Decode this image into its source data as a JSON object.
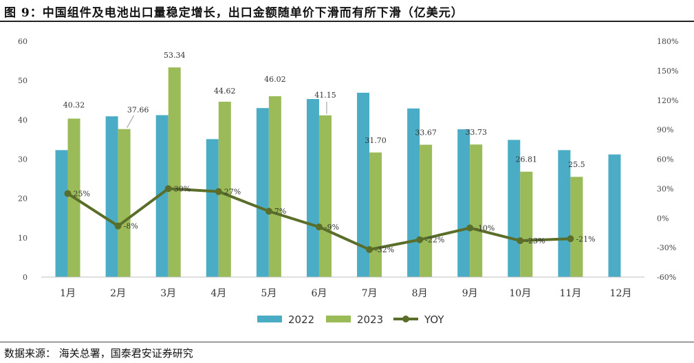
{
  "header": {
    "title": "图 9：中国组件及电池出口量稳定增长，出口金额随单价下滑而有所下滑（亿美元）"
  },
  "footer": {
    "source": "数据来源：  海关总署，国泰君安证券研究"
  },
  "colors": {
    "series_2022": "#4bacc6",
    "series_2023": "#9bbb59",
    "series_yoy": "#5a6e2a"
  },
  "chart_data": {
    "type": "bar",
    "title": "",
    "xlabel": "",
    "ylabel": "",
    "categories": [
      "1月",
      "2月",
      "3月",
      "4月",
      "5月",
      "6月",
      "7月",
      "8月",
      "9月",
      "10月",
      "11月",
      "12月"
    ],
    "ylim": [
      0,
      60
    ],
    "y_ticks": [
      "0",
      "10",
      "20",
      "30",
      "40",
      "50",
      "60"
    ],
    "y2lim": [
      -60,
      180
    ],
    "y2_ticks": [
      "-60%",
      "-30%",
      "0%",
      "30%",
      "60%",
      "90%",
      "120%",
      "150%",
      "180%"
    ],
    "grid": false,
    "legend_position": "bottom",
    "series": [
      {
        "name": "2022",
        "type": "bar",
        "axis": "left",
        "values": [
          32.3,
          40.9,
          41.2,
          35.1,
          43.0,
          45.3,
          46.9,
          42.9,
          37.6,
          34.9,
          32.3,
          31.2
        ]
      },
      {
        "name": "2023",
        "type": "bar",
        "axis": "left",
        "values": [
          40.32,
          37.66,
          53.34,
          44.62,
          46.02,
          41.15,
          31.7,
          33.67,
          33.73,
          26.81,
          25.5,
          null
        ],
        "labels": [
          "40.32",
          "37.66",
          "53.34",
          "44.62",
          "46.02",
          "41.15",
          "31.70",
          "33.67",
          "33.73",
          "26.81",
          "25.5",
          ""
        ]
      },
      {
        "name": "YOY",
        "type": "line",
        "axis": "right",
        "values": [
          25,
          -8,
          30,
          27,
          7,
          -9,
          -32,
          -22,
          -10,
          -23,
          -21,
          null
        ],
        "labels": [
          "25%",
          "-8%",
          "30%",
          "27%",
          "7%",
          "-9%",
          "-32%",
          "-22%",
          "-10%",
          "-23%",
          "-21%",
          ""
        ]
      }
    ]
  }
}
